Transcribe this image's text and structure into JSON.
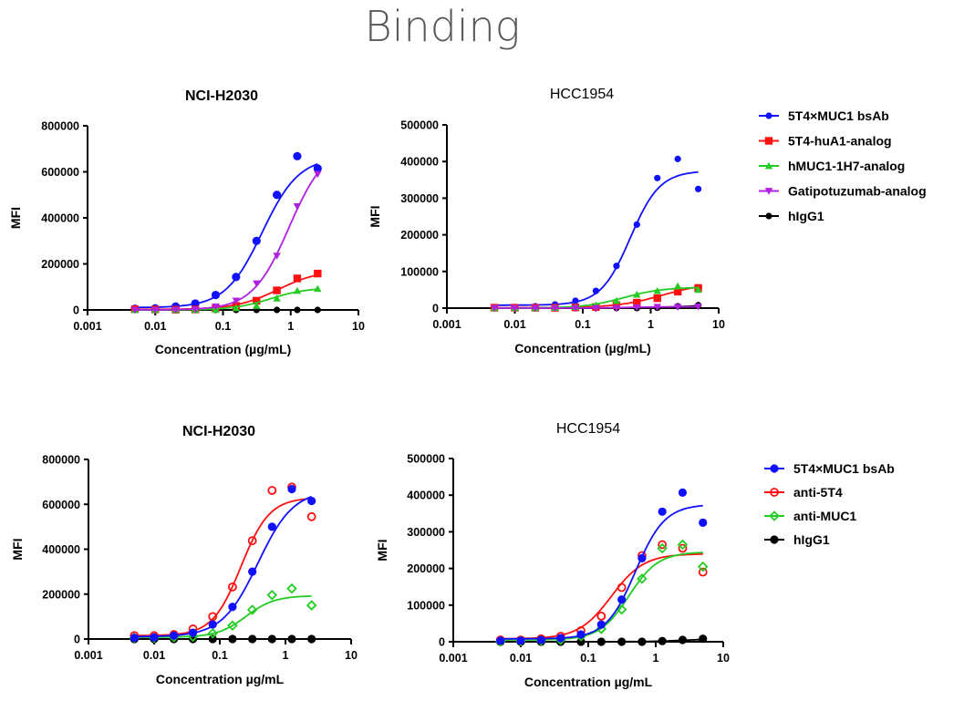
{
  "title": "Binding",
  "colors": {
    "blue": "#1010ff",
    "red": "#ff1010",
    "green": "#22cc22",
    "purple": "#b020e0",
    "black": "#000000"
  },
  "chart_data": [
    {
      "type": "scatter",
      "title": "NCI-H2030",
      "title_bold": true,
      "xlabel": "Concentration (µg/mL)",
      "ylabel": "MFI",
      "xscale": "log",
      "xlim": [
        0.001,
        10
      ],
      "xticks": [
        "0.001",
        "0.01",
        "0.1",
        "1",
        "10"
      ],
      "ylim": [
        0,
        800000
      ],
      "yticks": [
        "0",
        "200000",
        "400000",
        "600000",
        "800000"
      ],
      "x": [
        0.005,
        0.01,
        0.02,
        0.039,
        0.078,
        0.156,
        0.313,
        0.625,
        1.25,
        2.5
      ],
      "series": [
        {
          "name": "5T4×MUC1 bsAb",
          "color": "blue",
          "marker": "circle",
          "values": [
            5000,
            7000,
            15000,
            28000,
            65000,
            143000,
            300000,
            500000,
            668000,
            615000
          ],
          "fit": {
            "bottom": 10000,
            "top": 665000,
            "ec50": 0.38,
            "hill": 1.6
          }
        },
        {
          "name": "5T4-huA1-analog",
          "color": "red",
          "marker": "square",
          "values": [
            3000,
            2000,
            1000,
            2000,
            8000,
            18000,
            40000,
            85000,
            137000,
            158000
          ],
          "fit": {
            "bottom": 2000,
            "top": 175000,
            "ec50": 0.65,
            "hill": 1.4
          }
        },
        {
          "name": "hMUC1-1H7-analog",
          "color": "green",
          "marker": "triangle-up",
          "values": [
            0,
            0,
            0,
            0,
            1000,
            8000,
            18000,
            50000,
            83000,
            92000
          ],
          "fit": {
            "bottom": 0,
            "top": 97000,
            "ec50": 0.5,
            "hill": 1.6
          }
        },
        {
          "name": "Gatipotuzumab-analog",
          "color": "purple",
          "marker": "triangle-down",
          "values": [
            0,
            0,
            0,
            2000,
            15000,
            40000,
            115000,
            235000,
            450000,
            590000
          ],
          "fit": {
            "bottom": 0,
            "top": 720000,
            "ec50": 0.95,
            "hill": 1.6
          }
        },
        {
          "name": "hIgG1",
          "color": "black",
          "marker": "circle-small",
          "values": [
            0,
            0,
            0,
            0,
            0,
            0,
            0,
            0,
            0,
            0
          ],
          "fit": {
            "bottom": 0,
            "top": 0,
            "ec50": 1,
            "hill": 1
          }
        }
      ]
    },
    {
      "type": "scatter",
      "title": "HCC1954",
      "title_bold": false,
      "xlabel": "Concentration (µg/mL)",
      "ylabel": "MFI",
      "xscale": "log",
      "xlim": [
        0.001,
        10
      ],
      "xticks": [
        "0.001",
        "0.01",
        "0.1",
        "1",
        "10"
      ],
      "ylim": [
        0,
        500000
      ],
      "yticks": [
        "0",
        "100000",
        "200000",
        "300000",
        "400000",
        "500000"
      ],
      "x": [
        0.005,
        0.01,
        0.02,
        0.039,
        0.078,
        0.156,
        0.313,
        0.625,
        1.25,
        2.5,
        5
      ],
      "legend": [
        "5T4×MUC1 bsAb",
        "5T4-huA1-analog",
        "hMUC1-1H7-analog",
        "Gatipotuzumab-analog",
        "hIgG1"
      ],
      "series": [
        {
          "name": "5T4×MUC1 bsAb",
          "color": "blue",
          "marker": "circle-small",
          "values": [
            3000,
            3000,
            5000,
            10000,
            20000,
            47000,
            115000,
            228000,
            355000,
            407000,
            325000
          ],
          "fit": {
            "bottom": 8000,
            "top": 375000,
            "ec50": 0.5,
            "hill": 2
          }
        },
        {
          "name": "5T4-huA1-analog",
          "color": "red",
          "marker": "square",
          "values": [
            1000,
            1000,
            1000,
            1000,
            2000,
            3000,
            8000,
            15000,
            27000,
            45000,
            55000
          ],
          "fit": {
            "bottom": 1000,
            "top": 70000,
            "ec50": 1.5,
            "hill": 1.3
          }
        },
        {
          "name": "hMUC1-1H7-analog",
          "color": "green",
          "marker": "triangle-up",
          "values": [
            0,
            0,
            0,
            1000,
            3000,
            8000,
            20000,
            37000,
            47000,
            60000,
            50000
          ],
          "fit": {
            "bottom": 0,
            "top": 57000,
            "ec50": 0.4,
            "hill": 1.5
          }
        },
        {
          "name": "Gatipotuzumab-analog",
          "color": "purple",
          "marker": "triangle-down",
          "values": [
            0,
            0,
            0,
            0,
            0,
            0,
            0,
            2000,
            3000,
            3000,
            4000
          ],
          "fit": {
            "bottom": 0,
            "top": 4000,
            "ec50": 0.5,
            "hill": 1.5
          }
        },
        {
          "name": "hIgG1",
          "color": "black",
          "marker": "circle-small",
          "values": [
            0,
            0,
            0,
            0,
            0,
            0,
            0,
            0,
            1000,
            5000,
            8000
          ],
          "fit": {
            "bottom": 0,
            "top": 9000,
            "ec50": 3,
            "hill": 1.5
          }
        }
      ]
    },
    {
      "type": "scatter",
      "title": "NCI-H2030",
      "title_bold": true,
      "xlabel": "Concentration µg/mL",
      "ylabel": "MFI",
      "xscale": "log",
      "xlim": [
        0.001,
        10
      ],
      "xticks": [
        "0.001",
        "0.01",
        "0.1",
        "1",
        "10"
      ],
      "ylim": [
        0,
        800000
      ],
      "yticks": [
        "0",
        "200000",
        "400000",
        "600000",
        "800000"
      ],
      "x": [
        0.005,
        0.01,
        0.02,
        0.039,
        0.078,
        0.156,
        0.313,
        0.625,
        1.25,
        2.5
      ],
      "series": [
        {
          "name": "anti-5T4",
          "color": "red",
          "marker": "open-circle",
          "values": [
            15000,
            15000,
            20000,
            45000,
            100000,
            232000,
            438000,
            662000,
            677000,
            545000
          ],
          "fit": {
            "bottom": 15000,
            "top": 630000,
            "ec50": 0.21,
            "hill": 2
          }
        },
        {
          "name": "anti-MUC1",
          "color": "green",
          "marker": "open-diamond",
          "values": [
            5000,
            5000,
            8000,
            10000,
            25000,
            60000,
            130000,
            196000,
            225000,
            150000
          ],
          "fit": {
            "bottom": 8000,
            "top": 193000,
            "ec50": 0.25,
            "hill": 2
          }
        },
        {
          "name": "5T4×MUC1 bsAb",
          "color": "blue",
          "marker": "circle",
          "values": [
            5000,
            7000,
            15000,
            28000,
            65000,
            143000,
            300000,
            500000,
            668000,
            615000
          ],
          "fit": {
            "bottom": 10000,
            "top": 665000,
            "ec50": 0.38,
            "hill": 1.6
          }
        },
        {
          "name": "hIgG1",
          "color": "black",
          "marker": "circle",
          "values": [
            0,
            0,
            0,
            0,
            0,
            0,
            0,
            0,
            0,
            0
          ],
          "fit": {
            "bottom": 0,
            "top": 0,
            "ec50": 1,
            "hill": 1
          }
        }
      ]
    },
    {
      "type": "scatter",
      "title": "HCC1954",
      "title_bold": false,
      "xlabel": "Concentration µg/mL",
      "ylabel": "MFI",
      "xscale": "log",
      "xlim": [
        0.001,
        10
      ],
      "xticks": [
        "0.001",
        "0.01",
        "0.1",
        "1",
        "10"
      ],
      "ylim": [
        0,
        500000
      ],
      "yticks": [
        "0",
        "100000",
        "200000",
        "300000",
        "400000",
        "500000"
      ],
      "x": [
        0.005,
        0.01,
        0.02,
        0.039,
        0.078,
        0.156,
        0.313,
        0.625,
        1.25,
        2.5,
        5
      ],
      "legend": [
        "5T4×MUC1 bsAb",
        "anti-5T4",
        "anti-MUC1",
        "hIgG1"
      ],
      "series": [
        {
          "name": "anti-5T4",
          "color": "red",
          "marker": "open-circle",
          "values": [
            5000,
            5000,
            8000,
            15000,
            30000,
            70000,
            148000,
            235000,
            265000,
            255000,
            190000
          ],
          "fit": {
            "bottom": 8000,
            "top": 240000,
            "ec50": 0.22,
            "hill": 1.8
          }
        },
        {
          "name": "anti-MUC1",
          "color": "green",
          "marker": "open-diamond",
          "values": [
            1000,
            2000,
            3000,
            5000,
            15000,
            35000,
            88000,
            172000,
            255000,
            265000,
            205000
          ],
          "fit": {
            "bottom": 5000,
            "top": 245000,
            "ec50": 0.4,
            "hill": 2
          }
        },
        {
          "name": "5T4×MUC1 bsAb",
          "color": "blue",
          "marker": "circle",
          "values": [
            3000,
            3000,
            5000,
            10000,
            20000,
            47000,
            115000,
            228000,
            355000,
            407000,
            325000
          ],
          "fit": {
            "bottom": 8000,
            "top": 375000,
            "ec50": 0.5,
            "hill": 2
          }
        },
        {
          "name": "hIgG1",
          "color": "black",
          "marker": "circle",
          "values": [
            0,
            0,
            0,
            0,
            0,
            0,
            0,
            0,
            2000,
            5000,
            8000
          ],
          "fit": {
            "bottom": 0,
            "top": 9000,
            "ec50": 3,
            "hill": 1.5
          }
        }
      ]
    }
  ]
}
